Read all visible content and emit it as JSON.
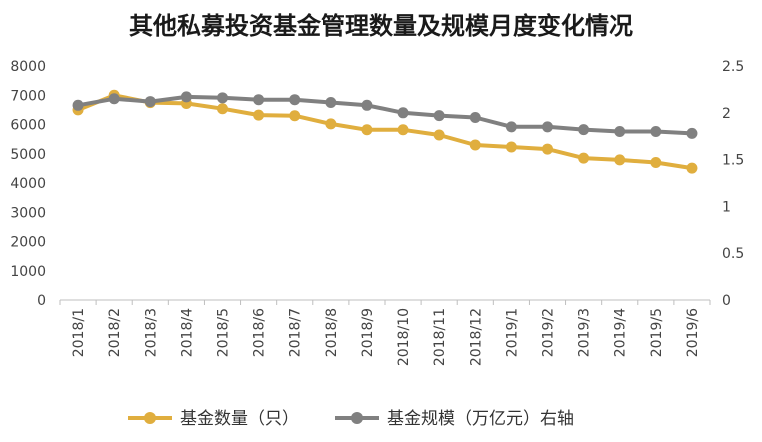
{
  "chart_data": {
    "type": "line",
    "title": "其他私募投资基金管理数量及规模月度变化情况",
    "categories": [
      "2018/1",
      "2018/2",
      "2018/3",
      "2018/4",
      "2018/5",
      "2018/6",
      "2018/7",
      "2018/8",
      "2018/9",
      "2018/10",
      "2018/11",
      "2018/12",
      "2019/1",
      "2019/2",
      "2019/3",
      "2019/4",
      "2019/5",
      "2019/6"
    ],
    "series": [
      {
        "name": "基金数量（只）",
        "axis": "left",
        "color": "#E0AE3E",
        "values": [
          6500,
          7000,
          6750,
          6720,
          6540,
          6320,
          6300,
          6020,
          5820,
          5820,
          5640,
          5300,
          5230,
          5160,
          4850,
          4790,
          4700,
          4510
        ]
      },
      {
        "name": "基金规模（万亿元）右轴",
        "axis": "right",
        "color": "#808080",
        "values": [
          2.08,
          2.15,
          2.12,
          2.17,
          2.16,
          2.14,
          2.14,
          2.11,
          2.08,
          2.0,
          1.97,
          1.95,
          1.85,
          1.85,
          1.82,
          1.8,
          1.8,
          1.78
        ]
      }
    ],
    "y_left": {
      "min": 0,
      "max": 8000,
      "ticks": [
        "0",
        "1000",
        "2000",
        "3000",
        "4000",
        "5000",
        "6000",
        "7000",
        "8000"
      ]
    },
    "y_right": {
      "min": 0,
      "max": 2.5,
      "ticks": [
        "0",
        "0.5",
        "1",
        "1.5",
        "2",
        "2.5"
      ]
    },
    "xlabel": "",
    "ylabel": "",
    "legend_position": "bottom",
    "grid": false
  }
}
